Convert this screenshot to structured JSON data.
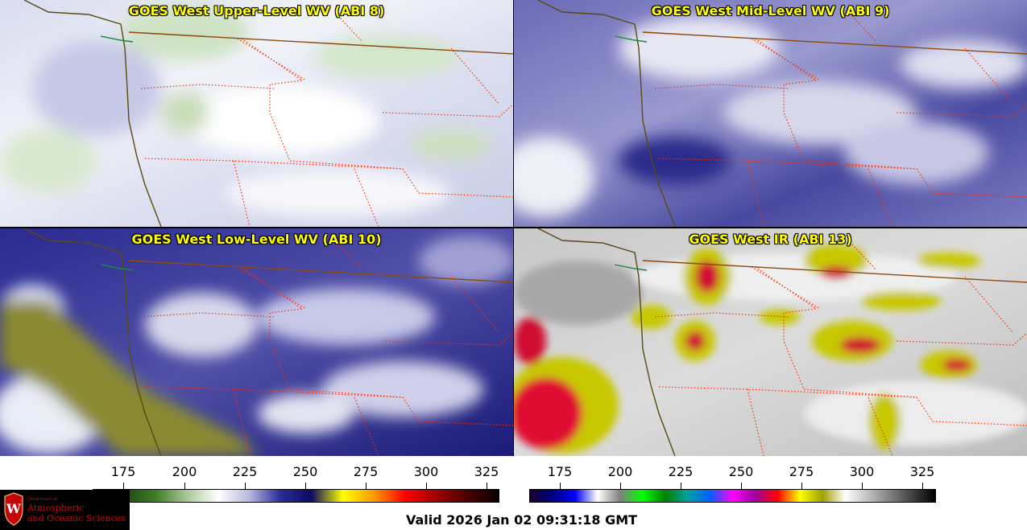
{
  "panels": [
    {
      "title": "GOES West Upper-Level WV (ABI 8)",
      "product": "water-vapor-upper"
    },
    {
      "title": "GOES West Mid-Level WV (ABI 9)",
      "product": "water-vapor-mid"
    },
    {
      "title": "GOES West Low-Level WV (ABI 10)",
      "product": "water-vapor-low"
    },
    {
      "title": "GOES West IR (ABI 13)",
      "product": "infrared"
    }
  ],
  "colorbars": {
    "left": {
      "ticks": [
        "175",
        "200",
        "225",
        "250",
        "275",
        "300",
        "325"
      ],
      "range": [
        165,
        330
      ],
      "colors": [
        "#0a1f05",
        "#1c4a10",
        "#3f7d25",
        "#a8c898",
        "#ffffff",
        "#b8b8e0",
        "#2a2a9a",
        "#0c0c60",
        "#ffff00",
        "#ff9900",
        "#ff0000",
        "#a00000",
        "#4a0000",
        "#0a0000"
      ]
    },
    "right": {
      "ticks": [
        "175",
        "200",
        "225",
        "250",
        "275",
        "300",
        "325"
      ],
      "range": [
        165,
        330
      ],
      "colors": [
        "#1a0030",
        "#000080",
        "#0000ff",
        "#ffffff",
        "#808080",
        "#00ff00",
        "#008000",
        "#00a0a0",
        "#0060ff",
        "#ff00ff",
        "#a000a0",
        "#ff0000",
        "#ffff00",
        "#a0a000",
        "#ffffff",
        "#c0c0c0",
        "#808080",
        "#404040",
        "#000000"
      ]
    }
  },
  "logo": {
    "dept": "Department of",
    "line1": "Atmospheric",
    "line2": "and Oceanic Sciences",
    "brand_color": "#c5050c"
  },
  "valid_text": "Valid 2026 Jan 02 09:31:18 GMT"
}
